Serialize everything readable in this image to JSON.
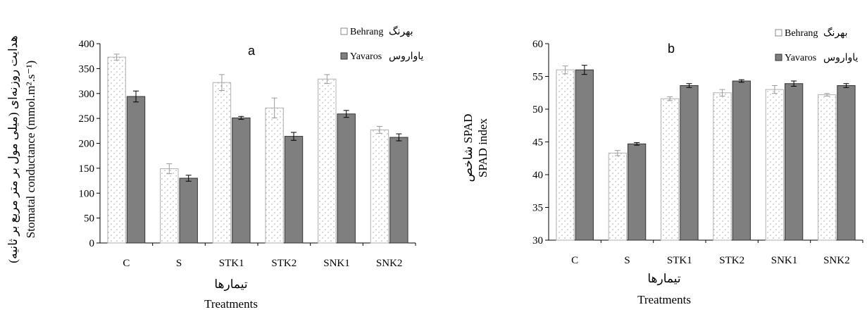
{
  "chart_data": [
    {
      "type": "bar",
      "panel_label": "a",
      "categories": [
        "C",
        "S",
        "STK1",
        "STK2",
        "SNK1",
        "SNK2"
      ],
      "series": [
        {
          "name": "Behrang بهرنگ",
          "values": [
            373,
            149,
            322,
            271,
            329,
            227
          ],
          "errors": [
            6,
            10,
            16,
            20,
            9,
            7
          ],
          "color": "#ffffff",
          "pattern": "dots",
          "stroke": "#b0b0b0"
        },
        {
          "name": "Yavaros یاواروس",
          "values": [
            294,
            130,
            251,
            214,
            259,
            212
          ],
          "errors": [
            11,
            6,
            3,
            8,
            7,
            7
          ],
          "color": "#7f7f7f",
          "pattern": "solid",
          "stroke": "#333333"
        }
      ],
      "ylim": [
        0,
        400
      ],
      "yticks": [
        0,
        50,
        100,
        150,
        200,
        250,
        300,
        350,
        400
      ],
      "ylabel_fa": "هدایت روزنه‌ای (میلی مول بر متر مربع بر ثانیه)",
      "ylabel_en": "Stomatal conductance (mmol.m².s⁻¹)",
      "xlabel_fa": "تیمارها",
      "xlabel_en": "Treatments",
      "legend_position": "top-right",
      "grid": false
    },
    {
      "type": "bar",
      "panel_label": "b",
      "categories": [
        "C",
        "S",
        "STK1",
        "STK2",
        "SNK1",
        "SNK2"
      ],
      "series": [
        {
          "name": "Behrang بهرنگ",
          "values": [
            56.0,
            43.3,
            51.6,
            52.5,
            53.0,
            52.2
          ],
          "errors": [
            0.6,
            0.4,
            0.3,
            0.5,
            0.6,
            0.2
          ],
          "color": "#ffffff",
          "pattern": "dots",
          "stroke": "#b0b0b0"
        },
        {
          "name": "Yavaros یاواروس",
          "values": [
            56.0,
            44.7,
            53.6,
            54.3,
            53.9,
            53.6
          ],
          "errors": [
            0.7,
            0.2,
            0.3,
            0.2,
            0.4,
            0.3
          ],
          "color": "#7f7f7f",
          "pattern": "solid",
          "stroke": "#333333"
        }
      ],
      "ylim": [
        30,
        60
      ],
      "yticks": [
        30,
        35,
        40,
        45,
        50,
        55,
        60
      ],
      "ylabel_fa": "شاخص SPAD",
      "ylabel_en": "SPAD index",
      "xlabel_fa": "تیمارها",
      "xlabel_en": "Treatments",
      "legend_position": "top-right",
      "grid": false
    }
  ],
  "legend": {
    "behrang_en": "Behrang",
    "behrang_fa": "بهرنگ",
    "yavaros_en": "Yavaros",
    "yavaros_fa": "یاواروس"
  }
}
